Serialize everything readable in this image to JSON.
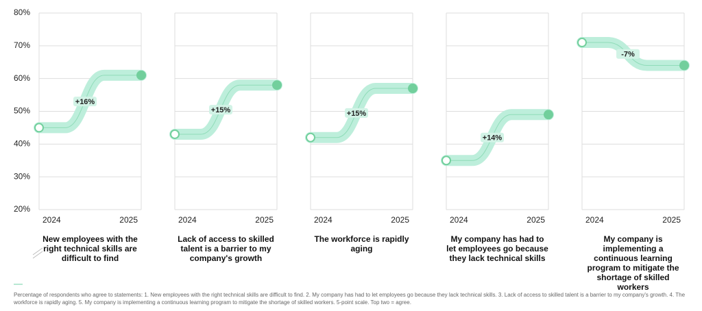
{
  "chart_data": [
    {
      "type": "line",
      "title": "New employees with the right technical skills are difficult to find",
      "categories": [
        "2024",
        "2025"
      ],
      "values": [
        45,
        61
      ],
      "annotation": "+16%",
      "color": "#72cf9c",
      "ylim": [
        20,
        80
      ],
      "yticks": [
        {
          "value": 20,
          "label": "20%"
        },
        {
          "value": 30,
          "label": "30%"
        },
        {
          "value": 40,
          "label": "40%"
        },
        {
          "value": 50,
          "label": "50%"
        },
        {
          "value": 60,
          "label": "60%"
        },
        {
          "value": 70,
          "label": "70%"
        },
        {
          "value": 80,
          "label": "80%"
        }
      ],
      "grid": true
    },
    {
      "type": "line",
      "title": "Lack of access to skilled talent is a barrier to my company's growth",
      "categories": [
        "2024",
        "2025"
      ],
      "values": [
        43,
        58
      ],
      "annotation": "+15%",
      "color": "#72cf9c",
      "ylim": [
        20,
        80
      ],
      "yticks": [
        20,
        30,
        40,
        50,
        60,
        70,
        80
      ],
      "grid": true
    },
    {
      "type": "line",
      "title": "The workforce is rapidly aging",
      "categories": [
        "2024",
        "2025"
      ],
      "values": [
        42,
        57
      ],
      "annotation": "+15%",
      "color": "#72cf9c",
      "ylim": [
        20,
        80
      ],
      "yticks": [
        20,
        30,
        40,
        50,
        60,
        70,
        80
      ],
      "grid": true
    },
    {
      "type": "line",
      "title": "My company has had to let employees go because they lack technical skills",
      "categories": [
        "2024",
        "2025"
      ],
      "values": [
        35,
        49
      ],
      "annotation": "+14%",
      "color": "#72cf9c",
      "ylim": [
        20,
        80
      ],
      "yticks": [
        20,
        30,
        40,
        50,
        60,
        70,
        80
      ],
      "grid": true
    },
    {
      "type": "line",
      "title": "My company is implementing a continuous learning program to mitigate the shortage of skilled workers",
      "categories": [
        "2024",
        "2025"
      ],
      "values": [
        71,
        64
      ],
      "annotation": "-7%",
      "color": "#72cf9c",
      "ylim": [
        20,
        80
      ],
      "yticks": [
        20,
        30,
        40,
        50,
        60,
        70,
        80
      ],
      "grid": true
    }
  ],
  "footnote": "Percentage of respondents who agree to statements: 1. New employees with the right technical skills are difficult to find. 2. My company has had to let employees go because they lack technical skills. 3. Lack of access to skilled talent is a barrier to my company's growth. 4. The workforce is rapidly aging. 5. My company is implementing a continuous learning program to mitigate the shortage of skilled workers. 5-point scale. Top two = agree."
}
